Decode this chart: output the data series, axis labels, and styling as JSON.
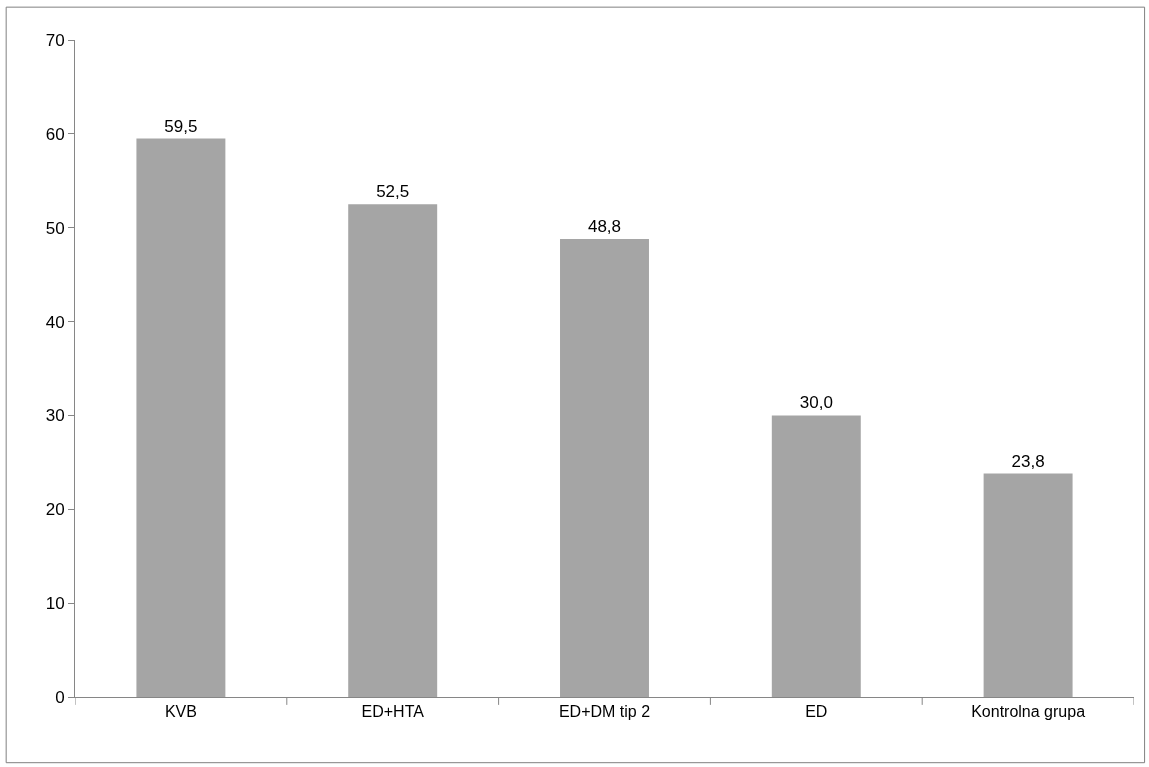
{
  "chart_data": {
    "type": "bar",
    "categories": [
      "KVB",
      "ED+HTA",
      "ED+DM tip 2",
      "ED",
      "Kontrolna grupa"
    ],
    "values": [
      59.5,
      52.5,
      48.8,
      30.0,
      23.8
    ],
    "value_labels": [
      "59,5",
      "52,5",
      "48,8",
      "30,0",
      "23,8"
    ],
    "color": "#a5a5a5",
    "ylim": [
      0,
      70
    ],
    "yticks": [
      0,
      10,
      20,
      30,
      40,
      50,
      60,
      70
    ]
  }
}
